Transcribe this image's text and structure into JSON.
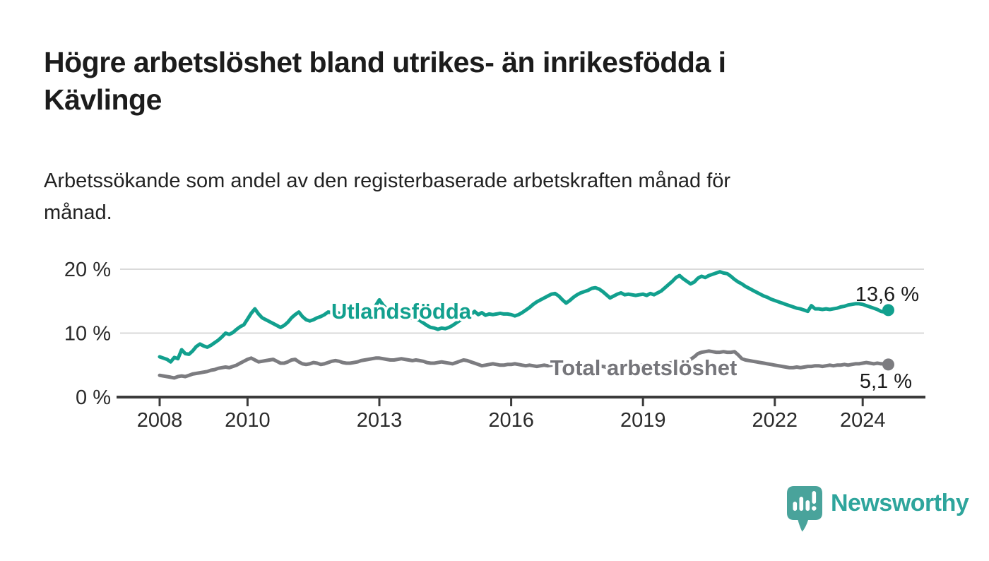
{
  "header": {
    "title_lines": [
      "Högre arbetslöshet bland utrikes- än inrikesfödda i",
      "Kävlinge"
    ],
    "subtitle_lines": [
      "Arbetssökande som andel av den registerbaserade arbetskraften månad för",
      "månad."
    ]
  },
  "chart_data": {
    "type": "line",
    "unit": "%",
    "frequency": "monthly",
    "start": {
      "year": 2008,
      "month": 1
    },
    "end": {
      "year": 2024,
      "month": 8
    },
    "ylim": [
      0,
      20
    ],
    "y_ticks": [
      0,
      10,
      20
    ],
    "y_tick_suffix": " %",
    "x_tick_years": [
      2008,
      2010,
      2013,
      2016,
      2019,
      2022,
      2024
    ],
    "grid": true,
    "colors": {
      "axis": "#3b3b3b",
      "grid": "#dadada",
      "tick_text": "#2b2b2b",
      "value_label_text": "#1a1a1a"
    },
    "series": [
      {
        "name": "Utlandsfödda",
        "color": "#12A08E",
        "label_color": "#12A08E",
        "end_label": "13,6 %",
        "end_value": 13.6,
        "values": [
          6.3,
          6.1,
          5.9,
          5.5,
          6.2,
          6.0,
          7.4,
          6.8,
          6.7,
          7.2,
          7.9,
          8.3,
          8.0,
          7.8,
          8.1,
          8.5,
          8.9,
          9.4,
          10.0,
          9.8,
          10.1,
          10.6,
          11.0,
          11.3,
          12.2,
          13.1,
          13.8,
          13.0,
          12.4,
          12.1,
          11.8,
          11.5,
          11.2,
          10.9,
          11.2,
          11.7,
          12.4,
          12.9,
          13.3,
          12.6,
          12.1,
          11.9,
          12.1,
          12.4,
          12.6,
          12.9,
          13.3,
          13.2,
          13.4,
          13.1,
          12.9,
          12.7,
          12.5,
          12.4,
          12.5,
          12.7,
          12.9,
          13.1,
          13.5,
          14.3,
          15.2,
          14.4,
          13.8,
          13.3,
          12.9,
          12.7,
          12.6,
          12.5,
          12.4,
          12.3,
          12.2,
          12.0,
          11.6,
          11.2,
          10.9,
          10.8,
          10.6,
          10.8,
          10.7,
          10.9,
          11.2,
          11.6,
          12.0,
          12.4,
          12.6,
          12.9,
          13.4,
          12.9,
          13.2,
          12.8,
          13.0,
          12.9,
          13.0,
          13.1,
          13.0,
          13.0,
          12.9,
          12.7,
          12.9,
          13.2,
          13.6,
          14.0,
          14.5,
          14.9,
          15.2,
          15.5,
          15.8,
          16.1,
          16.2,
          15.8,
          15.2,
          14.7,
          15.1,
          15.6,
          16.0,
          16.3,
          16.5,
          16.7,
          17.0,
          17.1,
          16.9,
          16.5,
          16.0,
          15.5,
          15.8,
          16.1,
          16.3,
          16.0,
          16.1,
          16.0,
          15.9,
          16.0,
          16.1,
          15.9,
          16.2,
          16.0,
          16.3,
          16.6,
          17.1,
          17.6,
          18.1,
          18.7,
          19.0,
          18.5,
          18.1,
          17.7,
          18.0,
          18.6,
          18.9,
          18.7,
          19.0,
          19.2,
          19.4,
          19.6,
          19.4,
          19.3,
          18.9,
          18.4,
          18.0,
          17.7,
          17.3,
          17.0,
          16.7,
          16.4,
          16.1,
          15.8,
          15.6,
          15.3,
          15.1,
          14.9,
          14.7,
          14.5,
          14.3,
          14.1,
          13.9,
          13.8,
          13.6,
          13.4,
          14.3,
          13.8,
          13.8,
          13.7,
          13.8,
          13.7,
          13.8,
          13.9,
          14.1,
          14.2,
          14.4,
          14.5,
          14.6,
          14.6,
          14.5,
          14.3,
          14.1,
          13.9,
          13.7,
          13.4,
          13.3,
          13.6
        ]
      },
      {
        "name": "Total arbetslöshet",
        "color": "#7C7C80",
        "label_color": "#75757A",
        "end_label": "5,1 %",
        "end_value": 5.1,
        "values": [
          3.4,
          3.3,
          3.2,
          3.1,
          3.0,
          3.2,
          3.3,
          3.2,
          3.4,
          3.6,
          3.7,
          3.8,
          3.9,
          4.0,
          4.2,
          4.3,
          4.5,
          4.6,
          4.7,
          4.6,
          4.8,
          5.0,
          5.3,
          5.6,
          5.9,
          6.1,
          5.8,
          5.5,
          5.6,
          5.7,
          5.8,
          5.9,
          5.6,
          5.3,
          5.3,
          5.5,
          5.8,
          5.9,
          5.5,
          5.2,
          5.1,
          5.2,
          5.4,
          5.3,
          5.1,
          5.2,
          5.4,
          5.6,
          5.7,
          5.6,
          5.4,
          5.3,
          5.3,
          5.4,
          5.5,
          5.7,
          5.8,
          5.9,
          6.0,
          6.1,
          6.1,
          6.0,
          5.9,
          5.8,
          5.8,
          5.9,
          6.0,
          5.9,
          5.8,
          5.7,
          5.8,
          5.7,
          5.6,
          5.4,
          5.3,
          5.3,
          5.4,
          5.5,
          5.4,
          5.3,
          5.2,
          5.4,
          5.6,
          5.8,
          5.7,
          5.5,
          5.3,
          5.1,
          4.9,
          5.0,
          5.1,
          5.2,
          5.1,
          5.0,
          5.0,
          5.1,
          5.1,
          5.2,
          5.1,
          5.0,
          4.9,
          5.0,
          4.9,
          4.8,
          4.9,
          5.0,
          4.9,
          5.0,
          5.0,
          4.9,
          4.8,
          4.9,
          5.0,
          4.9,
          4.8,
          4.9,
          5.0,
          5.1,
          5.0,
          4.9,
          4.9,
          4.8,
          4.7,
          4.8,
          4.9,
          5.0,
          4.9,
          4.8,
          4.9,
          5.0,
          5.1,
          5.0,
          5.0,
          4.9,
          5.0,
          5.1,
          5.2,
          5.1,
          5.2,
          5.3,
          5.4,
          5.5,
          5.6,
          5.7,
          5.8,
          5.9,
          6.3,
          6.8,
          7.0,
          7.1,
          7.2,
          7.1,
          7.0,
          7.0,
          7.1,
          7.0,
          7.0,
          7.1,
          6.6,
          6.0,
          5.8,
          5.7,
          5.6,
          5.5,
          5.4,
          5.3,
          5.2,
          5.1,
          5.0,
          4.9,
          4.8,
          4.7,
          4.6,
          4.6,
          4.7,
          4.6,
          4.7,
          4.8,
          4.8,
          4.9,
          4.9,
          4.8,
          4.9,
          5.0,
          4.9,
          5.0,
          5.0,
          5.1,
          5.0,
          5.1,
          5.2,
          5.2,
          5.3,
          5.4,
          5.3,
          5.2,
          5.3,
          5.2,
          5.2,
          5.1
        ]
      }
    ]
  },
  "footer": {
    "brand": "Newsworthy",
    "logo": {
      "icon": "newsworthy-speech-bubble-bar-chart-icon",
      "bubble_color": "#49A39B",
      "bars_color": "#ffffff",
      "wordmark_color": "#2EA59C"
    }
  }
}
